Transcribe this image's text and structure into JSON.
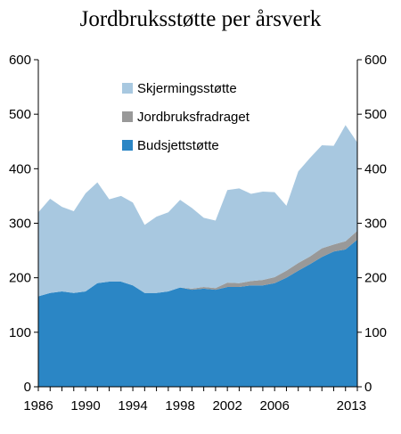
{
  "chart_data": {
    "type": "area",
    "title": "Jordbruksstøtte per årsverk",
    "stacked": true,
    "x": [
      1986,
      1987,
      1988,
      1989,
      1990,
      1991,
      1992,
      1993,
      1994,
      1995,
      1996,
      1997,
      1998,
      1999,
      2000,
      2001,
      2002,
      2003,
      2004,
      2005,
      2006,
      2007,
      2008,
      2009,
      2010,
      2011,
      2012,
      2013
    ],
    "x_tick_labels": [
      "1986",
      "1990",
      "1994",
      "1998",
      "2002",
      "2006",
      "2013"
    ],
    "x_tick_values": [
      1986,
      1990,
      1994,
      1998,
      2002,
      2006,
      2012.5
    ],
    "ylim": [
      0,
      600
    ],
    "y_ticks": [
      0,
      100,
      200,
      300,
      400,
      500,
      600
    ],
    "series": [
      {
        "name": "Budsjettstøtte",
        "color": "#2b86c5",
        "values": [
          166,
          172,
          175,
          172,
          175,
          190,
          193,
          193,
          186,
          172,
          172,
          175,
          182,
          178,
          180,
          178,
          183,
          183,
          186,
          186,
          190,
          200,
          213,
          225,
          238,
          248,
          252,
          270
        ]
      },
      {
        "name": "Jordbruksfradraget",
        "color": "#999999",
        "values": [
          0,
          0,
          0,
          0,
          0,
          0,
          0,
          0,
          0,
          0,
          0,
          0,
          0,
          2,
          3,
          3,
          8,
          7,
          8,
          10,
          11,
          13,
          14,
          14,
          16,
          13,
          15,
          16
        ]
      },
      {
        "name": "Skjermingsstøtte",
        "color": "#a8c8e0",
        "values": [
          154,
          173,
          155,
          150,
          180,
          185,
          151,
          157,
          152,
          125,
          140,
          145,
          161,
          148,
          127,
          124,
          170,
          174,
          160,
          162,
          156,
          119,
          168,
          181,
          189,
          181,
          213,
          162
        ]
      }
    ],
    "legend_position": "top-center",
    "grid": false,
    "secondary_y_axis": true
  }
}
